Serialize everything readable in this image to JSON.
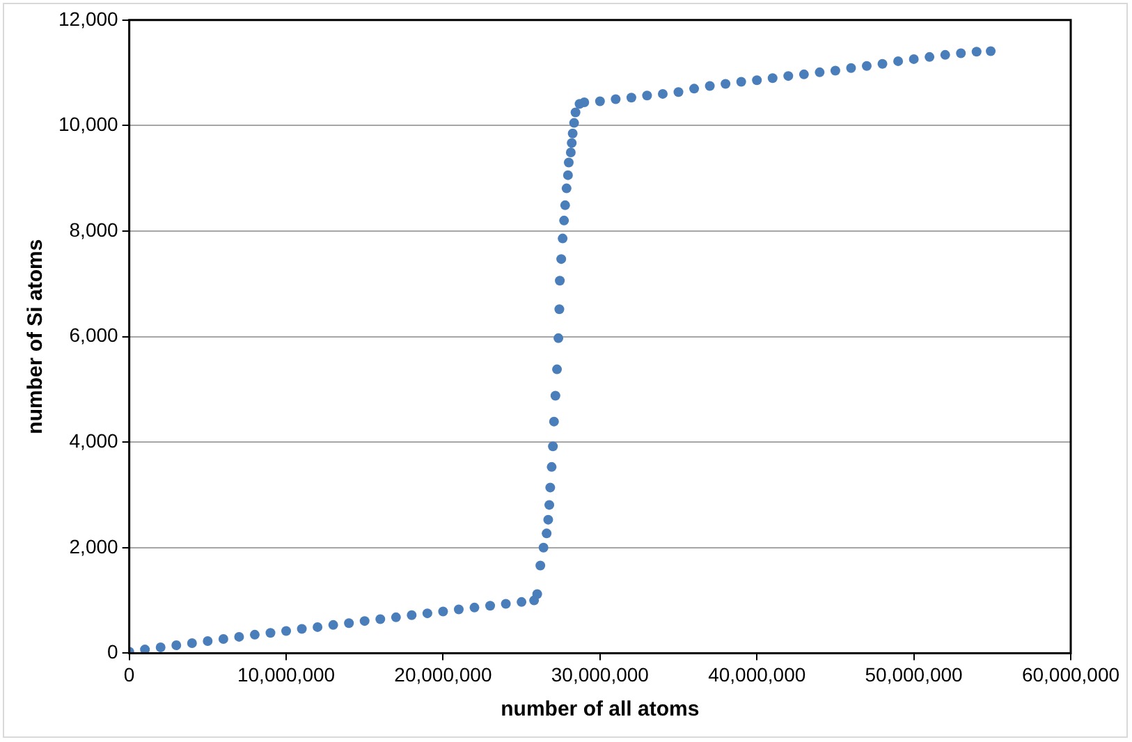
{
  "chart_data": {
    "type": "scatter",
    "xlabel": "number of all atoms",
    "ylabel": "number of Si atoms",
    "grid": "y",
    "marker": "circle",
    "legend": false,
    "xlim": [
      0,
      60000000
    ],
    "ylim": [
      0,
      12000
    ],
    "xticks": [
      0,
      {
        "value": 10000000,
        "label": "10,000,000"
      },
      {
        "value": 20000000,
        "label": "20,000,000"
      },
      {
        "value": 30000000,
        "label": "30,000,000"
      },
      {
        "value": 40000000,
        "label": "40,000,000"
      },
      {
        "value": 50000000,
        "label": "50,000,000"
      },
      {
        "value": 60000000,
        "label": "60,000,000"
      }
    ],
    "yticks": [
      0,
      {
        "value": 2000,
        "label": "2,000"
      },
      {
        "value": 4000,
        "label": "4,000"
      },
      {
        "value": 6000,
        "label": "6,000"
      },
      {
        "value": 8000,
        "label": "8,000"
      },
      {
        "value": 10000,
        "label": "10,000"
      },
      {
        "value": 12000,
        "label": "12,000"
      }
    ],
    "series": [
      {
        "color": "#4a7ebb",
        "x": [
          0,
          1000000,
          2000000,
          3000000,
          4000000,
          5000000,
          6000000,
          7000000,
          8000000,
          9000000,
          10000000,
          11000000,
          12000000,
          13000000,
          14000000,
          15000000,
          16000000,
          17000000,
          18000000,
          19000000,
          20000000,
          21000000,
          22000000,
          23000000,
          24000000,
          25000000,
          25800000,
          26000000,
          26200000,
          26400000,
          26600000,
          26700000,
          26770000,
          26830000,
          26920000,
          27000000,
          27070000,
          27160000,
          27260000,
          27350000,
          27410000,
          27440000,
          27530000,
          27620000,
          27710000,
          27780000,
          27870000,
          27960000,
          28010000,
          28140000,
          28200000,
          28260000,
          28350000,
          28440000,
          28700000,
          29000000,
          30000000,
          31000000,
          32000000,
          33000000,
          34000000,
          35000000,
          36000000,
          37000000,
          38000000,
          39000000,
          40000000,
          41000000,
          42000000,
          43000000,
          44000000,
          45000000,
          46000000,
          47000000,
          48000000,
          49000000,
          50000000,
          51000000,
          52000000,
          53000000,
          54000000,
          54900000
        ],
        "values": [
          30,
          70,
          110,
          150,
          190,
          230,
          270,
          310,
          350,
          385,
          420,
          460,
          495,
          535,
          570,
          610,
          645,
          680,
          720,
          755,
          790,
          830,
          865,
          900,
          935,
          970,
          1000,
          1120,
          1660,
          2000,
          2270,
          2530,
          2810,
          3140,
          3530,
          3920,
          4390,
          4880,
          5380,
          5970,
          6520,
          7060,
          7470,
          7860,
          8200,
          8490,
          8810,
          9060,
          9300,
          9490,
          9670,
          9850,
          10050,
          10250,
          10410,
          10440,
          10460,
          10500,
          10530,
          10570,
          10600,
          10635,
          10700,
          10750,
          10790,
          10830,
          10860,
          10900,
          10940,
          10970,
          11010,
          11040,
          11090,
          11130,
          11170,
          11220,
          11260,
          11300,
          11340,
          11370,
          11400,
          11410
        ]
      }
    ]
  }
}
